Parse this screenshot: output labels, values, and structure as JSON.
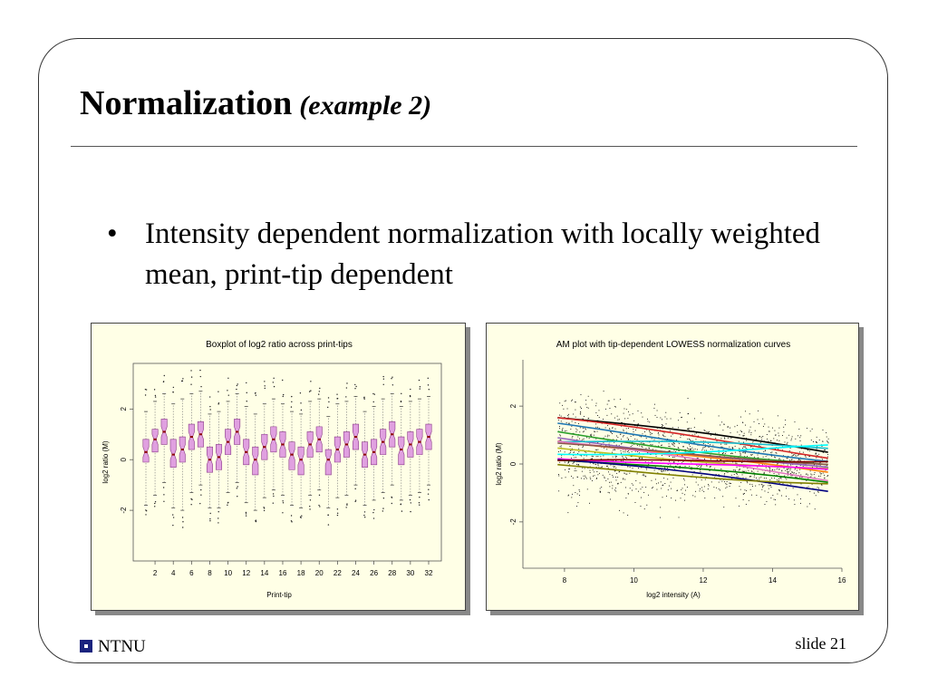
{
  "slide": {
    "title": "Normalization",
    "subtitle": "(example 2)",
    "bullet_marker": "•",
    "bullet": "Intensity dependent normalization with locally weighted mean, print-tip dependent",
    "footer_logo_text": "NTNU",
    "slide_number": "slide 21"
  },
  "chart_data": [
    {
      "type": "boxplot",
      "title": "Boxplot of log2 ratio across print-tips",
      "xlabel": "Print-tip",
      "ylabel": "log2 ratio (M)",
      "x_ticks": [
        2,
        4,
        6,
        8,
        10,
        12,
        14,
        16,
        18,
        20,
        22,
        24,
        26,
        28,
        30,
        32
      ],
      "y_ticks": [
        -2,
        0,
        2
      ],
      "ylim": [
        -4,
        3.8
      ],
      "box_color": "#e0a0e0",
      "median_color": "#8b0000",
      "medians": [
        0.3,
        0.8,
        1.1,
        0.2,
        0.4,
        0.9,
        1.0,
        0.0,
        0.1,
        0.7,
        1.1,
        0.3,
        0.0,
        0.5,
        0.8,
        0.6,
        0.2,
        0.0,
        0.6,
        0.8,
        0.0,
        0.4,
        0.6,
        0.9,
        0.2,
        0.3,
        0.7,
        1.0,
        0.4,
        0.6,
        0.7,
        0.9
      ],
      "q1": [
        -0.1,
        0.3,
        0.6,
        -0.3,
        -0.1,
        0.4,
        0.5,
        -0.5,
        -0.4,
        0.2,
        0.6,
        -0.2,
        -0.6,
        0.0,
        0.3,
        0.1,
        -0.4,
        -0.6,
        0.1,
        0.3,
        -0.6,
        -0.1,
        0.1,
        0.4,
        -0.3,
        -0.2,
        0.2,
        0.5,
        -0.2,
        0.1,
        0.2,
        0.4
      ],
      "q3": [
        0.8,
        1.2,
        1.6,
        0.8,
        0.9,
        1.4,
        1.5,
        0.5,
        0.6,
        1.2,
        1.6,
        0.8,
        0.5,
        1.0,
        1.3,
        1.1,
        0.7,
        0.5,
        1.1,
        1.3,
        0.4,
        0.9,
        1.1,
        1.4,
        0.7,
        0.8,
        1.2,
        1.5,
        0.9,
        1.1,
        1.2,
        1.4
      ],
      "low_whisker": [
        -1.8,
        -1.4,
        -0.9,
        -1.9,
        -2.0,
        -1.3,
        -1.0,
        -1.9,
        -1.9,
        -1.3,
        -0.9,
        -1.7,
        -2.0,
        -1.5,
        -1.2,
        -1.4,
        -1.8,
        -1.9,
        -1.4,
        -1.2,
        -1.9,
        -1.5,
        -1.4,
        -1.0,
        -1.8,
        -1.6,
        -1.3,
        -1.0,
        -1.6,
        -1.4,
        -1.3,
        -1.0
      ],
      "high_whisker": [
        1.9,
        2.3,
        2.6,
        2.2,
        2.4,
        2.6,
        2.7,
        1.8,
        1.9,
        2.3,
        2.6,
        2.1,
        1.8,
        2.2,
        2.4,
        2.2,
        1.9,
        1.8,
        2.3,
        2.4,
        1.7,
        2.2,
        2.3,
        2.5,
        1.9,
        2.1,
        2.4,
        2.6,
        2.1,
        2.3,
        2.4,
        2.5
      ]
    },
    {
      "type": "scatter",
      "title": "AM plot with tip-dependent LOWESS normalization curves",
      "xlabel": "log2 intensity (A)",
      "ylabel": "log2 ratio (M)",
      "x_ticks": [
        8,
        10,
        12,
        14,
        16
      ],
      "y_ticks": [
        -2,
        0,
        2
      ],
      "xlim": [
        6.8,
        16
      ],
      "ylim": [
        -3.6,
        3.6
      ],
      "point_color": "#000000",
      "curve_colors": [
        "#000000",
        "#d62728",
        "#1f77b4",
        "#2ca02c",
        "#9467bd",
        "#ff7f0e",
        "#17becf",
        "#e377c2",
        "#8c564b",
        "#bcbd22",
        "#00ffff",
        "#ff00ff",
        "#008000",
        "#000080",
        "#800000",
        "#808000"
      ],
      "curve_x_range": [
        7.8,
        15.6
      ],
      "curve_start_y": [
        1.6,
        1.5,
        1.3,
        1.1,
        1.0,
        0.9,
        0.8,
        0.7,
        0.6,
        0.5,
        0.4,
        0.3,
        0.2,
        0.1,
        0.0,
        -0.1
      ],
      "curve_end_y": [
        0.4,
        0.3,
        0.2,
        0.0,
        -0.2,
        -0.4,
        0.5,
        -0.5,
        0.1,
        -0.1,
        0.6,
        -0.3,
        -0.7,
        -0.9,
        0.2,
        -0.6
      ]
    }
  ]
}
